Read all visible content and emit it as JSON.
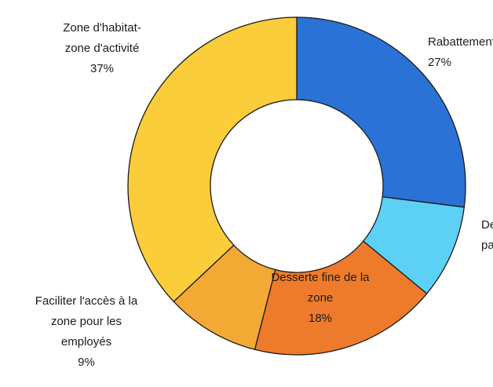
{
  "chart_data": {
    "type": "pie",
    "donut": true,
    "title": "",
    "slices": [
      {
        "label_lines": [
          "Rabattement",
          "27%"
        ],
        "value": 27,
        "color": "#2a72d6"
      },
      {
        "label_lines": [
          "Desserte",
          "parking"
        ],
        "value": 9,
        "color": "#5dd0f5"
      },
      {
        "label_lines": [
          "Desserte fine de la",
          "zone",
          "18%"
        ],
        "value": 18,
        "color": "#ee7b2b"
      },
      {
        "label_lines": [
          "Faciliter l'accès à la",
          "zone pour les",
          "employés",
          "9%"
        ],
        "value": 9,
        "color": "#f3aa35"
      },
      {
        "label_lines": [
          "Zone d'habitat-",
          "zone d'activité",
          "37%"
        ],
        "value": 37,
        "color": "#fbcd3a"
      }
    ]
  }
}
